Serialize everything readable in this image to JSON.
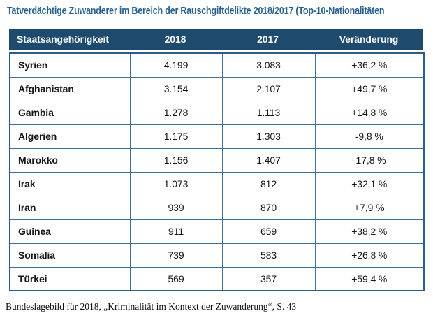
{
  "title": "Tatverdächtige Zuwanderer im Bereich der Rauschgiftdelikte 2018/2017 (Top-10-Nationalitäten",
  "table": {
    "columns": [
      "Staatsangehörigkeit",
      "2018",
      "2017",
      "Veränderung"
    ],
    "rows": [
      {
        "country": "Syrien",
        "y2018": "4.199",
        "y2017": "3.083",
        "change": "+36,2 %"
      },
      {
        "country": "Afghanistan",
        "y2018": "3.154",
        "y2017": "2.107",
        "change": "+49,7 %"
      },
      {
        "country": "Gambia",
        "y2018": "1.278",
        "y2017": "1.113",
        "change": "+14,8 %"
      },
      {
        "country": "Algerien",
        "y2018": "1.175",
        "y2017": "1.303",
        "change": "-9,8 %"
      },
      {
        "country": "Marokko",
        "y2018": "1.156",
        "y2017": "1.407",
        "change": "-17,8 %"
      },
      {
        "country": "Irak",
        "y2018": "1.073",
        "y2017": "812",
        "change": "+32,1 %"
      },
      {
        "country": "Iran",
        "y2018": "939",
        "y2017": "870",
        "change": "+7,9 %"
      },
      {
        "country": "Guinea",
        "y2018": "911",
        "y2017": "659",
        "change": "+38,2 %"
      },
      {
        "country": "Somalia",
        "y2018": "739",
        "y2017": "583",
        "change": "+26,8 %"
      },
      {
        "country": "Türkei",
        "y2018": "569",
        "y2017": "357",
        "change": "+59,4 %"
      }
    ]
  },
  "footer": "Bundeslagebild für 2018, „Kriminalität im Kontext der Zuwanderung“, S. 43",
  "colors": {
    "header_bg": "#1e4a6d",
    "inner_border": "#41719c",
    "outer_border": "#2b5d8a",
    "title_text": "#28618f",
    "header_text": "#f4f8fb",
    "body_text": "#161616"
  }
}
